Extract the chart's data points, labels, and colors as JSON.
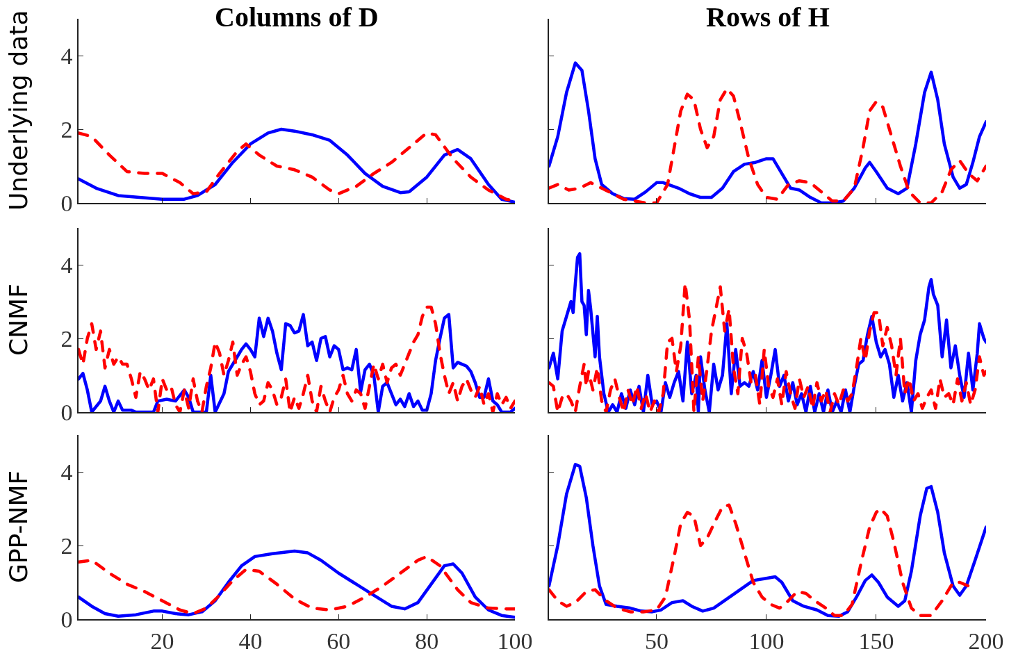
{
  "chart_data": [
    {
      "type": "line",
      "title": "Columns of D",
      "ylabel": "Underlying data",
      "xlim": [
        1,
        100
      ],
      "ylim": [
        0,
        5
      ],
      "xticks": [
        {
          "value": 20,
          "label": null
        },
        {
          "value": 40,
          "label": null
        },
        {
          "value": 60,
          "label": null
        },
        {
          "value": 80,
          "label": null
        },
        {
          "value": 100,
          "label": null
        }
      ],
      "yticks": [
        0,
        2,
        4
      ],
      "tick_labels": "y",
      "series": [
        {
          "color": "#0000ff",
          "line_style": "solid",
          "x": [
            1,
            5,
            10,
            20,
            25,
            28,
            32,
            36,
            40,
            44,
            47,
            50,
            54,
            58,
            62,
            66,
            70,
            74,
            76,
            80,
            84,
            87,
            90,
            94,
            97,
            100
          ],
          "values": [
            0.65,
            0.4,
            0.2,
            0.1,
            0.1,
            0.2,
            0.5,
            1.1,
            1.6,
            1.9,
            2.0,
            1.95,
            1.85,
            1.7,
            1.3,
            0.8,
            0.45,
            0.28,
            0.3,
            0.7,
            1.3,
            1.45,
            1.2,
            0.5,
            0.1,
            0.02
          ]
        },
        {
          "color": "#ff0000",
          "line_style": "dashed",
          "x": [
            1,
            4,
            8,
            12,
            16,
            20,
            24,
            27,
            30,
            33,
            37,
            39,
            42,
            46,
            50,
            54,
            58,
            60,
            64,
            68,
            72,
            76,
            80,
            82,
            86,
            90,
            94,
            98,
            100
          ],
          "values": [
            1.9,
            1.8,
            1.3,
            0.85,
            0.8,
            0.8,
            0.55,
            0.25,
            0.3,
            0.8,
            1.4,
            1.6,
            1.3,
            1.0,
            0.9,
            0.7,
            0.35,
            0.25,
            0.45,
            0.8,
            1.1,
            1.5,
            1.9,
            1.85,
            1.2,
            0.7,
            0.35,
            0.1,
            0.05
          ]
        }
      ]
    },
    {
      "type": "line",
      "title": "Rows of H",
      "xlim": [
        1,
        200
      ],
      "ylim": [
        0,
        5
      ],
      "xticks": [
        {
          "value": 50,
          "label": null
        },
        {
          "value": 100,
          "label": null
        },
        {
          "value": 150,
          "label": null
        },
        {
          "value": 200,
          "label": null
        }
      ],
      "yticks": [
        {
          "value": 0,
          "label": null
        },
        {
          "value": 2,
          "label": null
        },
        {
          "value": 4,
          "label": null
        }
      ],
      "tick_labels": false,
      "series": [
        {
          "color": "#0000ff",
          "line_style": "solid",
          "x": [
            1,
            5,
            9,
            13,
            16,
            19,
            22,
            25,
            30,
            35,
            40,
            45,
            50,
            53,
            60,
            65,
            70,
            75,
            80,
            85,
            90,
            95,
            100,
            103,
            107,
            111,
            115,
            120,
            125,
            130,
            135,
            140,
            145,
            147,
            150,
            155,
            160,
            164,
            168,
            172,
            175,
            178,
            181,
            185,
            188,
            191,
            194,
            197,
            200
          ],
          "values": [
            1.0,
            1.8,
            3.0,
            3.8,
            3.6,
            2.5,
            1.2,
            0.5,
            0.25,
            0.12,
            0.1,
            0.3,
            0.55,
            0.55,
            0.4,
            0.25,
            0.15,
            0.15,
            0.4,
            0.85,
            1.05,
            1.1,
            1.2,
            1.2,
            0.8,
            0.4,
            0.35,
            0.15,
            0.0,
            0.0,
            0.05,
            0.4,
            0.95,
            1.1,
            0.85,
            0.4,
            0.25,
            0.4,
            1.6,
            3.0,
            3.55,
            2.8,
            1.6,
            0.7,
            0.4,
            0.5,
            1.1,
            1.8,
            2.2
          ]
        },
        {
          "color": "#ff0000",
          "line_style": "dashed",
          "x": [
            1,
            5,
            10,
            15,
            20,
            25,
            30,
            35,
            40,
            45,
            50,
            55,
            58,
            61,
            64,
            67,
            70,
            73,
            76,
            79,
            82,
            85,
            88,
            92,
            96,
            100,
            105,
            110,
            115,
            120,
            125,
            130,
            135,
            140,
            144,
            147,
            150,
            153,
            157,
            161,
            165,
            170,
            175,
            180,
            184,
            188,
            192,
            196,
            200
          ],
          "values": [
            0.4,
            0.5,
            0.35,
            0.4,
            0.55,
            0.4,
            0.25,
            0.1,
            0.05,
            0.0,
            0.0,
            0.5,
            1.5,
            2.5,
            2.95,
            2.8,
            2.0,
            1.5,
            1.8,
            2.8,
            3.1,
            2.9,
            2.2,
            1.2,
            0.5,
            0.15,
            0.1,
            0.5,
            0.6,
            0.55,
            0.3,
            0.05,
            0.05,
            0.4,
            1.5,
            2.5,
            2.75,
            2.6,
            1.8,
            1.0,
            0.3,
            0.0,
            0.0,
            0.3,
            0.9,
            1.15,
            0.8,
            0.6,
            1.0
          ]
        }
      ]
    },
    {
      "type": "line",
      "ylabel": "CNMF",
      "xlim": [
        1,
        100
      ],
      "ylim": [
        0,
        5
      ],
      "xticks": [
        {
          "value": 20,
          "label": null
        },
        {
          "value": 40,
          "label": null
        },
        {
          "value": 60,
          "label": null
        },
        {
          "value": 80,
          "label": null
        },
        {
          "value": 100,
          "label": null
        }
      ],
      "yticks": [
        0,
        2,
        4
      ],
      "tick_labels": "y",
      "series": [
        {
          "color": "#0000ff",
          "line_style": "solid",
          "x": [
            1,
            2,
            3,
            4,
            6,
            7,
            8,
            9,
            10,
            11,
            13,
            14,
            18,
            19,
            21,
            23,
            24,
            25,
            26,
            27,
            30,
            31,
            32,
            34,
            35,
            37,
            38,
            39,
            40,
            41,
            42,
            43,
            44,
            45,
            46,
            47,
            48,
            49,
            50,
            51,
            52,
            53,
            54,
            55,
            56,
            57,
            58,
            59,
            60,
            61,
            62,
            63,
            64,
            65,
            66,
            67,
            68,
            69,
            70,
            71,
            72,
            73,
            74,
            75,
            76,
            77,
            78,
            79,
            80,
            81,
            82,
            83,
            84,
            85,
            86,
            87,
            88,
            89,
            90,
            91,
            92,
            93,
            94,
            95,
            96,
            97,
            99,
            100
          ],
          "values": [
            0.9,
            1.05,
            0.6,
            0.0,
            0.3,
            0.7,
            0.3,
            0.0,
            0.3,
            0.05,
            0.05,
            0.0,
            0.0,
            0.3,
            0.35,
            0.3,
            0.45,
            0.6,
            0.4,
            0.0,
            0.0,
            1.0,
            0.0,
            0.5,
            1.1,
            1.5,
            1.7,
            1.85,
            1.7,
            1.5,
            2.55,
            2.05,
            2.55,
            2.2,
            1.6,
            1.15,
            2.4,
            2.35,
            2.15,
            2.2,
            2.65,
            1.8,
            1.9,
            1.4,
            2.0,
            2.05,
            1.5,
            1.8,
            1.7,
            1.15,
            1.2,
            1.15,
            1.7,
            0.55,
            1.15,
            1.3,
            1.0,
            0.0,
            0.7,
            0.8,
            0.5,
            0.2,
            0.35,
            0.15,
            0.5,
            0.15,
            0.3,
            0.05,
            0.05,
            0.5,
            1.4,
            2.0,
            2.55,
            2.65,
            1.2,
            1.35,
            1.3,
            1.25,
            1.1,
            0.8,
            0.4,
            0.4,
            0.9,
            0.3,
            0.2,
            0.0,
            0.0,
            0.1
          ]
        },
        {
          "color": "#ff0000",
          "line_style": "dashed",
          "x": [
            1,
            2,
            3,
            4,
            5,
            6,
            7,
            8,
            9,
            10,
            11,
            12,
            13,
            14,
            15,
            16,
            17,
            18,
            19,
            20,
            21,
            22,
            23,
            24,
            25,
            26,
            27,
            28,
            29,
            30,
            31,
            32,
            33,
            34,
            35,
            36,
            37,
            38,
            39,
            40,
            41,
            42,
            43,
            44,
            45,
            46,
            47,
            48,
            49,
            50,
            51,
            52,
            53,
            54,
            55,
            56,
            57,
            58,
            59,
            60,
            61,
            62,
            63,
            64,
            65,
            66,
            67,
            68,
            69,
            70,
            71,
            72,
            73,
            74,
            75,
            76,
            77,
            78,
            79,
            80,
            81,
            82,
            83,
            84,
            85,
            86,
            87,
            88,
            89,
            90,
            91,
            92,
            93,
            94,
            95,
            96,
            97,
            98,
            99,
            100
          ],
          "values": [
            1.7,
            1.3,
            2.0,
            2.4,
            1.7,
            2.2,
            1.2,
            1.7,
            1.3,
            1.5,
            1.3,
            1.3,
            0.9,
            0.4,
            1.1,
            0.9,
            0.6,
            0.9,
            0.0,
            0.9,
            0.6,
            0.7,
            0.2,
            0.0,
            0.6,
            0.1,
            0.9,
            0.3,
            0.0,
            0.7,
            1.2,
            1.9,
            1.6,
            1.0,
            1.4,
            1.9,
            1.0,
            1.3,
            1.5,
            1.1,
            0.5,
            0.2,
            0.3,
            0.8,
            0.6,
            0.2,
            0.4,
            0.9,
            0.0,
            0.4,
            0.1,
            0.5,
            1.0,
            0.3,
            0.0,
            0.7,
            0.3,
            0.0,
            0.4,
            0.6,
            1.0,
            0.5,
            0.3,
            0.6,
            0.5,
            0.1,
            0.7,
            1.3,
            0.9,
            1.3,
            0.8,
            1.2,
            1.3,
            1.0,
            1.3,
            1.6,
            1.9,
            2.1,
            2.6,
            2.85,
            2.85,
            2.4,
            1.6,
            1.0,
            0.5,
            0.8,
            0.3,
            0.7,
            0.9,
            0.6,
            0.4,
            0.7,
            0.2,
            0.5,
            0.0,
            0.5,
            0.2,
            0.4,
            0.1,
            0.3
          ]
        }
      ]
    },
    {
      "type": "line",
      "xlim": [
        1,
        200
      ],
      "ylim": [
        0,
        5
      ],
      "xticks": [
        {
          "value": 50,
          "label": null
        },
        {
          "value": 100,
          "label": null
        },
        {
          "value": 150,
          "label": null
        },
        {
          "value": 200,
          "label": null
        }
      ],
      "yticks": [
        {
          "value": 0,
          "label": null
        },
        {
          "value": 2,
          "label": null
        },
        {
          "value": 4,
          "label": null
        }
      ],
      "tick_labels": false,
      "series": [
        {
          "color": "#0000ff",
          "line_style": "solid",
          "x": [
            1,
            3,
            5,
            7,
            9,
            11,
            12,
            13,
            14,
            15,
            16,
            17,
            18,
            19,
            20,
            22,
            23,
            24,
            26,
            28,
            30,
            32,
            34,
            36,
            38,
            40,
            42,
            44,
            46,
            48,
            50,
            52,
            54,
            56,
            58,
            60,
            62,
            64,
            66,
            68,
            69,
            70,
            72,
            74,
            76,
            78,
            80,
            82,
            84,
            86,
            88,
            90,
            92,
            94,
            96,
            98,
            100,
            102,
            104,
            106,
            108,
            110,
            112,
            114,
            116,
            118,
            120,
            122,
            124,
            126,
            128,
            130,
            132,
            134,
            136,
            138,
            140,
            142,
            144,
            146,
            148,
            150,
            152,
            154,
            156,
            158,
            160,
            162,
            164,
            166,
            168,
            170,
            172,
            174,
            175,
            176,
            178,
            180,
            182,
            184,
            186,
            188,
            190,
            192,
            194,
            196,
            197,
            199,
            200
          ],
          "values": [
            1.2,
            1.6,
            0.9,
            2.2,
            2.6,
            3.0,
            2.7,
            3.5,
            4.2,
            4.3,
            3.0,
            2.9,
            2.1,
            3.3,
            2.8,
            1.5,
            2.6,
            1.5,
            0.5,
            0.0,
            0.2,
            0.0,
            0.5,
            0.1,
            0.6,
            0.2,
            0.7,
            0.0,
            1.0,
            0.2,
            0.3,
            0.0,
            0.8,
            0.4,
            0.8,
            1.1,
            0.3,
            1.9,
            0.5,
            1.0,
            0.0,
            1.5,
            0.6,
            0.0,
            1.3,
            0.6,
            1.0,
            2.4,
            0.5,
            1.7,
            0.7,
            0.8,
            0.7,
            1.1,
            0.6,
            1.4,
            0.4,
            1.0,
            1.7,
            0.7,
            1.0,
            0.3,
            0.8,
            0.2,
            0.5,
            0.0,
            0.7,
            0.0,
            0.5,
            0.0,
            0.6,
            0.0,
            0.3,
            0.0,
            0.6,
            0.0,
            0.7,
            1.3,
            1.4,
            2.1,
            2.6,
            1.9,
            1.5,
            1.7,
            1.3,
            0.4,
            1.0,
            0.3,
            0.8,
            0.0,
            1.4,
            2.1,
            2.5,
            3.4,
            3.6,
            3.2,
            2.9,
            1.5,
            2.5,
            1.2,
            1.8,
            1.0,
            0.4,
            1.6,
            0.6,
            1.6,
            2.4,
            2.0,
            1.9
          ]
        },
        {
          "color": "#ff0000",
          "line_style": "dashed",
          "x": [
            1,
            3,
            5,
            7,
            9,
            11,
            13,
            15,
            17,
            18,
            19,
            21,
            23,
            25,
            27,
            29,
            31,
            33,
            35,
            37,
            39,
            41,
            43,
            45,
            47,
            49,
            51,
            53,
            55,
            57,
            59,
            61,
            63,
            65,
            67,
            69,
            71,
            73,
            75,
            77,
            79,
            81,
            83,
            85,
            87,
            89,
            91,
            93,
            95,
            97,
            99,
            101,
            103,
            105,
            107,
            109,
            111,
            113,
            115,
            117,
            119,
            121,
            123,
            125,
            127,
            129,
            131,
            133,
            135,
            137,
            139,
            141,
            143,
            145,
            147,
            149,
            151,
            153,
            155,
            157,
            159,
            161,
            163,
            165,
            167,
            169,
            171,
            173,
            175,
            177,
            179,
            181,
            183,
            185,
            187,
            189,
            191,
            193,
            195,
            197,
            199,
            200
          ],
          "values": [
            0.8,
            0.7,
            0.0,
            0.4,
            0.5,
            0.3,
            0.0,
            0.7,
            1.3,
            0.7,
            1.1,
            0.6,
            1.2,
            0.3,
            0.0,
            0.6,
            0.9,
            0.4,
            0.0,
            0.6,
            0.2,
            0.7,
            0.1,
            0.5,
            0.0,
            0.3,
            0.0,
            0.5,
            1.9,
            2.0,
            1.1,
            1.8,
            3.5,
            2.5,
            0.0,
            1.5,
            0.3,
            1.2,
            2.2,
            2.8,
            3.4,
            2.2,
            2.8,
            1.2,
            0.5,
            2.0,
            1.6,
            0.8,
            1.0,
            0.2,
            1.7,
            0.7,
            0.4,
            0.9,
            0.2,
            1.1,
            0.5,
            0.1,
            0.9,
            0.4,
            0.7,
            0.1,
            0.8,
            0.3,
            0.6,
            0.0,
            0.5,
            0.2,
            0.6,
            0.3,
            0.5,
            1.2,
            2.0,
            1.4,
            2.2,
            2.7,
            2.7,
            1.8,
            2.3,
            1.8,
            1.0,
            2.0,
            0.5,
            0.9,
            0.3,
            0.5,
            0.1,
            0.4,
            0.6,
            0.1,
            0.9,
            0.4,
            0.5,
            0.2,
            0.9,
            0.3,
            0.8,
            0.2,
            0.6,
            1.5,
            1.0,
            1.1
          ]
        }
      ]
    },
    {
      "type": "line",
      "ylabel": "GPP-NMF",
      "xlim": [
        1,
        100
      ],
      "ylim": [
        0,
        5
      ],
      "xticks": [
        20,
        40,
        60,
        80,
        100
      ],
      "yticks": [
        0,
        2,
        4
      ],
      "series": [
        {
          "color": "#0000ff",
          "line_style": "solid",
          "x": [
            1,
            4,
            7,
            10,
            14,
            18,
            20,
            23,
            26,
            29,
            32,
            35,
            38,
            41,
            45,
            50,
            53,
            56,
            60,
            64,
            68,
            72,
            75,
            78,
            81,
            84,
            86,
            88,
            91,
            94,
            97,
            100
          ],
          "values": [
            0.6,
            0.35,
            0.15,
            0.08,
            0.12,
            0.22,
            0.22,
            0.15,
            0.12,
            0.2,
            0.5,
            1.0,
            1.45,
            1.7,
            1.78,
            1.85,
            1.8,
            1.6,
            1.25,
            0.95,
            0.65,
            0.35,
            0.28,
            0.45,
            0.95,
            1.45,
            1.5,
            1.25,
            0.6,
            0.25,
            0.1,
            0.05
          ]
        },
        {
          "color": "#ff0000",
          "line_style": "dashed",
          "x": [
            1,
            4,
            8,
            12,
            16,
            20,
            24,
            27,
            30,
            33,
            36,
            39,
            42,
            46,
            50,
            54,
            58,
            62,
            66,
            70,
            74,
            78,
            80,
            83,
            87,
            90,
            94,
            98,
            100
          ],
          "values": [
            1.55,
            1.6,
            1.25,
            0.95,
            0.75,
            0.5,
            0.25,
            0.15,
            0.3,
            0.65,
            1.05,
            1.35,
            1.3,
            0.95,
            0.55,
            0.3,
            0.25,
            0.35,
            0.6,
            0.9,
            1.25,
            1.6,
            1.7,
            1.45,
            0.8,
            0.45,
            0.3,
            0.28,
            0.28
          ]
        }
      ]
    },
    {
      "type": "line",
      "xlim": [
        1,
        200
      ],
      "ylim": [
        0,
        5
      ],
      "xticks": [
        50,
        100,
        150,
        200
      ],
      "yticks": [
        {
          "value": 0,
          "label": null
        },
        {
          "value": 2,
          "label": null
        },
        {
          "value": 4,
          "label": null
        }
      ],
      "tick_labels": "x",
      "series": [
        {
          "color": "#0000ff",
          "line_style": "solid",
          "x": [
            1,
            5,
            9,
            13,
            15,
            18,
            21,
            24,
            27,
            32,
            38,
            43,
            48,
            52,
            57,
            62,
            66,
            71,
            76,
            82,
            88,
            94,
            99,
            104,
            107,
            112,
            117,
            123,
            128,
            133,
            137,
            141,
            145,
            148,
            151,
            155,
            160,
            163,
            166,
            170,
            173,
            175,
            178,
            181,
            185,
            188,
            191,
            195,
            200
          ],
          "values": [
            0.9,
            2.0,
            3.4,
            4.2,
            4.15,
            3.3,
            2.0,
            0.9,
            0.4,
            0.35,
            0.3,
            0.22,
            0.2,
            0.25,
            0.45,
            0.5,
            0.35,
            0.22,
            0.3,
            0.55,
            0.8,
            1.05,
            1.1,
            1.15,
            1.0,
            0.5,
            0.35,
            0.25,
            0.1,
            0.08,
            0.2,
            0.6,
            1.05,
            1.2,
            1.0,
            0.6,
            0.35,
            0.5,
            1.3,
            2.8,
            3.55,
            3.6,
            2.9,
            1.8,
            0.9,
            0.65,
            0.9,
            1.6,
            2.5
          ]
        },
        {
          "color": "#ff0000",
          "line_style": "dashed",
          "x": [
            1,
            5,
            9,
            13,
            18,
            22,
            27,
            32,
            38,
            44,
            50,
            54,
            58,
            61,
            64,
            67,
            70,
            73,
            77,
            80,
            83,
            86,
            90,
            94,
            98,
            102,
            106,
            110,
            114,
            118,
            122,
            127,
            131,
            135,
            139,
            143,
            147,
            150,
            152,
            155,
            158,
            162,
            166,
            170,
            175,
            180,
            185,
            188,
            192
          ],
          "values": [
            0.8,
            0.5,
            0.35,
            0.45,
            0.75,
            0.8,
            0.5,
            0.3,
            0.2,
            0.2,
            0.25,
            0.6,
            1.7,
            2.6,
            2.9,
            2.8,
            2.0,
            2.2,
            2.7,
            3.05,
            3.1,
            2.6,
            1.8,
            1.0,
            0.6,
            0.4,
            0.3,
            0.5,
            0.75,
            0.7,
            0.5,
            0.3,
            0.1,
            0.1,
            0.4,
            1.5,
            2.5,
            2.9,
            3.0,
            2.8,
            2.1,
            1.0,
            0.3,
            0.1,
            0.1,
            0.5,
            1.0,
            1.0,
            0.9
          ]
        }
      ]
    }
  ]
}
